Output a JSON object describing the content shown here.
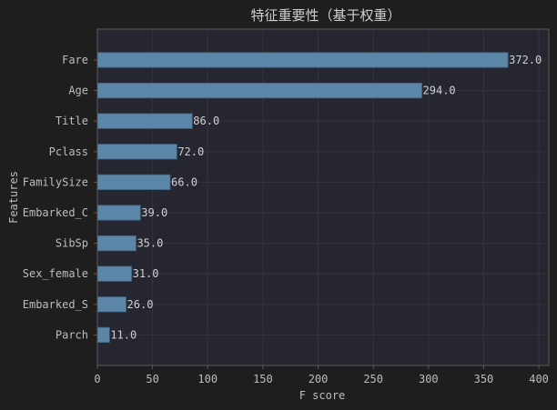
{
  "chart_data": {
    "type": "bar",
    "orientation": "horizontal",
    "title": "特征重要性（基于权重）",
    "xlabel": "F score",
    "ylabel": "Features",
    "categories": [
      "Fare",
      "Age",
      "Title",
      "Pclass",
      "FamilySize",
      "Embarked_C",
      "SibSp",
      "Sex_female",
      "Embarked_S",
      "Parch"
    ],
    "values": [
      372.0,
      294.0,
      86.0,
      72.0,
      66.0,
      39.0,
      35.0,
      31.0,
      26.0,
      11.0
    ],
    "value_labels": [
      "372.0",
      "294.0",
      "86.0",
      "72.0",
      "66.0",
      "39.0",
      "35.0",
      "31.0",
      "26.0",
      "11.0"
    ],
    "xlim": [
      0,
      409
    ],
    "xticks": [
      0,
      50,
      100,
      150,
      200,
      250,
      300,
      350,
      400
    ],
    "grid": true,
    "legend": "none",
    "colors": {
      "background": "#1e1e1e",
      "plot_background": "#262630",
      "bar": "#5b86a8",
      "bar_edge": "#3d5f7a",
      "grid": "#34343c",
      "spine": "#5a5a5a"
    }
  }
}
